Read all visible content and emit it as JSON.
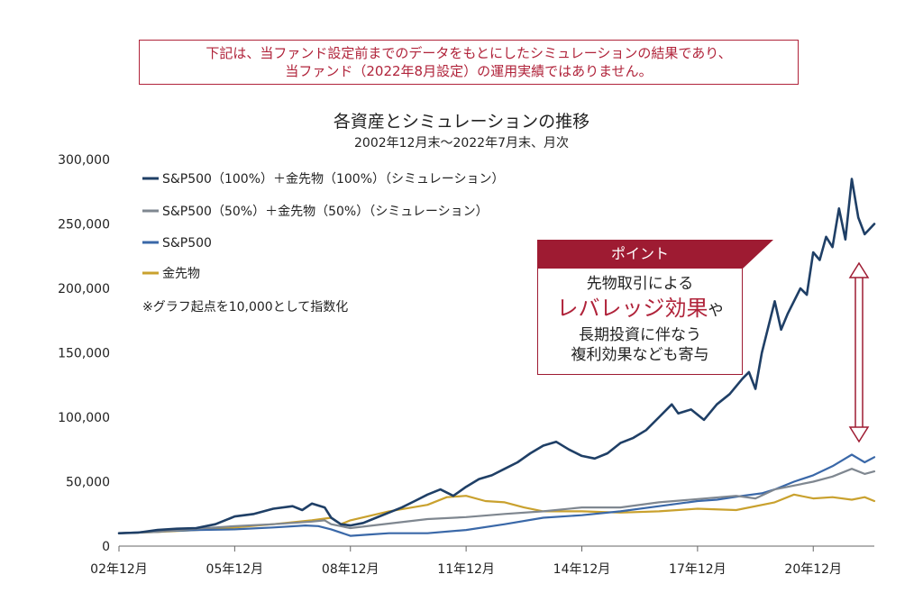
{
  "disclaimer": {
    "line1": "下記は、当ファンド設定前までのデータをもとにしたシミュレーションの結果であり、",
    "line2": "当ファンド（2022年8月設定）の運用実績ではありません。"
  },
  "colors": {
    "s1": "#1f3f66",
    "s2": "#7f8790",
    "s3": "#3a68a8",
    "s4": "#c9a12e",
    "point": "#9e1b32"
  },
  "note": "※グラフ起点を10,000として指数化",
  "point": {
    "header": "ポイント",
    "line1": "先物取引による",
    "emph": "レバレッジ効果",
    "emph_suffix": "や",
    "line3": "長期投資に伴なう",
    "line4": "複利効果なども寄与"
  },
  "chart_data": {
    "type": "line",
    "title": "各資産とシミュレーションの推移",
    "subtitle": "2002年12月末～2022年7月末、月次",
    "ylim": [
      0,
      300000
    ],
    "yticks": [
      "0",
      "50,000",
      "100,000",
      "150,000",
      "200,000",
      "250,000",
      "300,000"
    ],
    "xticks": [
      "02年12月",
      "05年12月",
      "08年12月",
      "11年12月",
      "14年12月",
      "17年12月",
      "20年12月"
    ],
    "xlim": [
      0,
      235
    ],
    "legend_position": "top-left",
    "series": [
      {
        "name": "S&P500（100%）＋金先物（100%）（シミュレーション）",
        "color": "#1f3f66",
        "width": 2.6,
        "points": [
          [
            0,
            10000
          ],
          [
            6,
            10500
          ],
          [
            12,
            12500
          ],
          [
            18,
            13500
          ],
          [
            24,
            14000
          ],
          [
            30,
            17000
          ],
          [
            36,
            23000
          ],
          [
            42,
            25000
          ],
          [
            48,
            29000
          ],
          [
            54,
            31000
          ],
          [
            57,
            28000
          ],
          [
            60,
            33000
          ],
          [
            64,
            30000
          ],
          [
            66,
            22000
          ],
          [
            69,
            17000
          ],
          [
            72,
            16000
          ],
          [
            76,
            18000
          ],
          [
            80,
            22000
          ],
          [
            84,
            26000
          ],
          [
            88,
            30000
          ],
          [
            92,
            35000
          ],
          [
            96,
            40000
          ],
          [
            100,
            44000
          ],
          [
            104,
            39000
          ],
          [
            108,
            46000
          ],
          [
            112,
            52000
          ],
          [
            116,
            55000
          ],
          [
            120,
            60000
          ],
          [
            124,
            65000
          ],
          [
            128,
            72000
          ],
          [
            132,
            78000
          ],
          [
            136,
            81000
          ],
          [
            140,
            75000
          ],
          [
            144,
            70000
          ],
          [
            148,
            68000
          ],
          [
            152,
            72000
          ],
          [
            156,
            80000
          ],
          [
            160,
            84000
          ],
          [
            164,
            90000
          ],
          [
            168,
            100000
          ],
          [
            172,
            110000
          ],
          [
            174,
            103000
          ],
          [
            178,
            106000
          ],
          [
            182,
            98000
          ],
          [
            186,
            110000
          ],
          [
            190,
            118000
          ],
          [
            194,
            130000
          ],
          [
            196,
            135000
          ],
          [
            198,
            122000
          ],
          [
            200,
            150000
          ],
          [
            204,
            190000
          ],
          [
            206,
            168000
          ],
          [
            208,
            180000
          ],
          [
            212,
            200000
          ],
          [
            214,
            195000
          ],
          [
            216,
            228000
          ],
          [
            218,
            222000
          ],
          [
            220,
            240000
          ],
          [
            222,
            232000
          ],
          [
            224,
            262000
          ],
          [
            226,
            238000
          ],
          [
            228,
            285000
          ],
          [
            230,
            255000
          ],
          [
            232,
            242000
          ],
          [
            235,
            250000
          ]
        ]
      },
      {
        "name": "S&P500（50%）＋金先物（50%）（シミュレーション）",
        "color": "#7f8790",
        "width": 2.2,
        "points": [
          [
            0,
            10000
          ],
          [
            12,
            11000
          ],
          [
            24,
            13500
          ],
          [
            36,
            15500
          ],
          [
            48,
            17000
          ],
          [
            60,
            19000
          ],
          [
            64,
            20000
          ],
          [
            66,
            17000
          ],
          [
            72,
            14000
          ],
          [
            84,
            17500
          ],
          [
            96,
            21000
          ],
          [
            108,
            22500
          ],
          [
            120,
            25000
          ],
          [
            132,
            27000
          ],
          [
            144,
            30000
          ],
          [
            156,
            30000
          ],
          [
            168,
            34000
          ],
          [
            180,
            36500
          ],
          [
            192,
            39000
          ],
          [
            198,
            37000
          ],
          [
            204,
            44000
          ],
          [
            216,
            50000
          ],
          [
            222,
            54000
          ],
          [
            228,
            60000
          ],
          [
            232,
            56000
          ],
          [
            235,
            58000
          ]
        ]
      },
      {
        "name": "S&P500",
        "color": "#3a68a8",
        "width": 2.2,
        "points": [
          [
            0,
            10000
          ],
          [
            12,
            11500
          ],
          [
            24,
            12500
          ],
          [
            36,
            13000
          ],
          [
            48,
            14500
          ],
          [
            58,
            16000
          ],
          [
            62,
            15500
          ],
          [
            66,
            13000
          ],
          [
            72,
            8000
          ],
          [
            78,
            9000
          ],
          [
            84,
            10000
          ],
          [
            96,
            10000
          ],
          [
            108,
            12500
          ],
          [
            120,
            17000
          ],
          [
            132,
            22000
          ],
          [
            144,
            24000
          ],
          [
            156,
            27000
          ],
          [
            168,
            31000
          ],
          [
            180,
            35000
          ],
          [
            186,
            36000
          ],
          [
            194,
            39000
          ],
          [
            200,
            41000
          ],
          [
            204,
            44000
          ],
          [
            210,
            50000
          ],
          [
            216,
            55000
          ],
          [
            222,
            62000
          ],
          [
            228,
            71000
          ],
          [
            232,
            65000
          ],
          [
            235,
            69000
          ]
        ]
      },
      {
        "name": "金先物",
        "color": "#c9a12e",
        "width": 2.2,
        "points": [
          [
            0,
            10000
          ],
          [
            12,
            11000
          ],
          [
            24,
            12500
          ],
          [
            36,
            14500
          ],
          [
            48,
            17000
          ],
          [
            60,
            20000
          ],
          [
            66,
            22000
          ],
          [
            69,
            17000
          ],
          [
            72,
            20000
          ],
          [
            84,
            27000
          ],
          [
            96,
            32000
          ],
          [
            102,
            38000
          ],
          [
            108,
            39000
          ],
          [
            114,
            35000
          ],
          [
            120,
            34000
          ],
          [
            126,
            30000
          ],
          [
            132,
            27000
          ],
          [
            144,
            27000
          ],
          [
            156,
            26000
          ],
          [
            168,
            27000
          ],
          [
            180,
            29000
          ],
          [
            192,
            28000
          ],
          [
            204,
            34000
          ],
          [
            210,
            40000
          ],
          [
            216,
            37000
          ],
          [
            222,
            38000
          ],
          [
            228,
            36000
          ],
          [
            232,
            38000
          ],
          [
            235,
            35000
          ]
        ]
      }
    ]
  }
}
